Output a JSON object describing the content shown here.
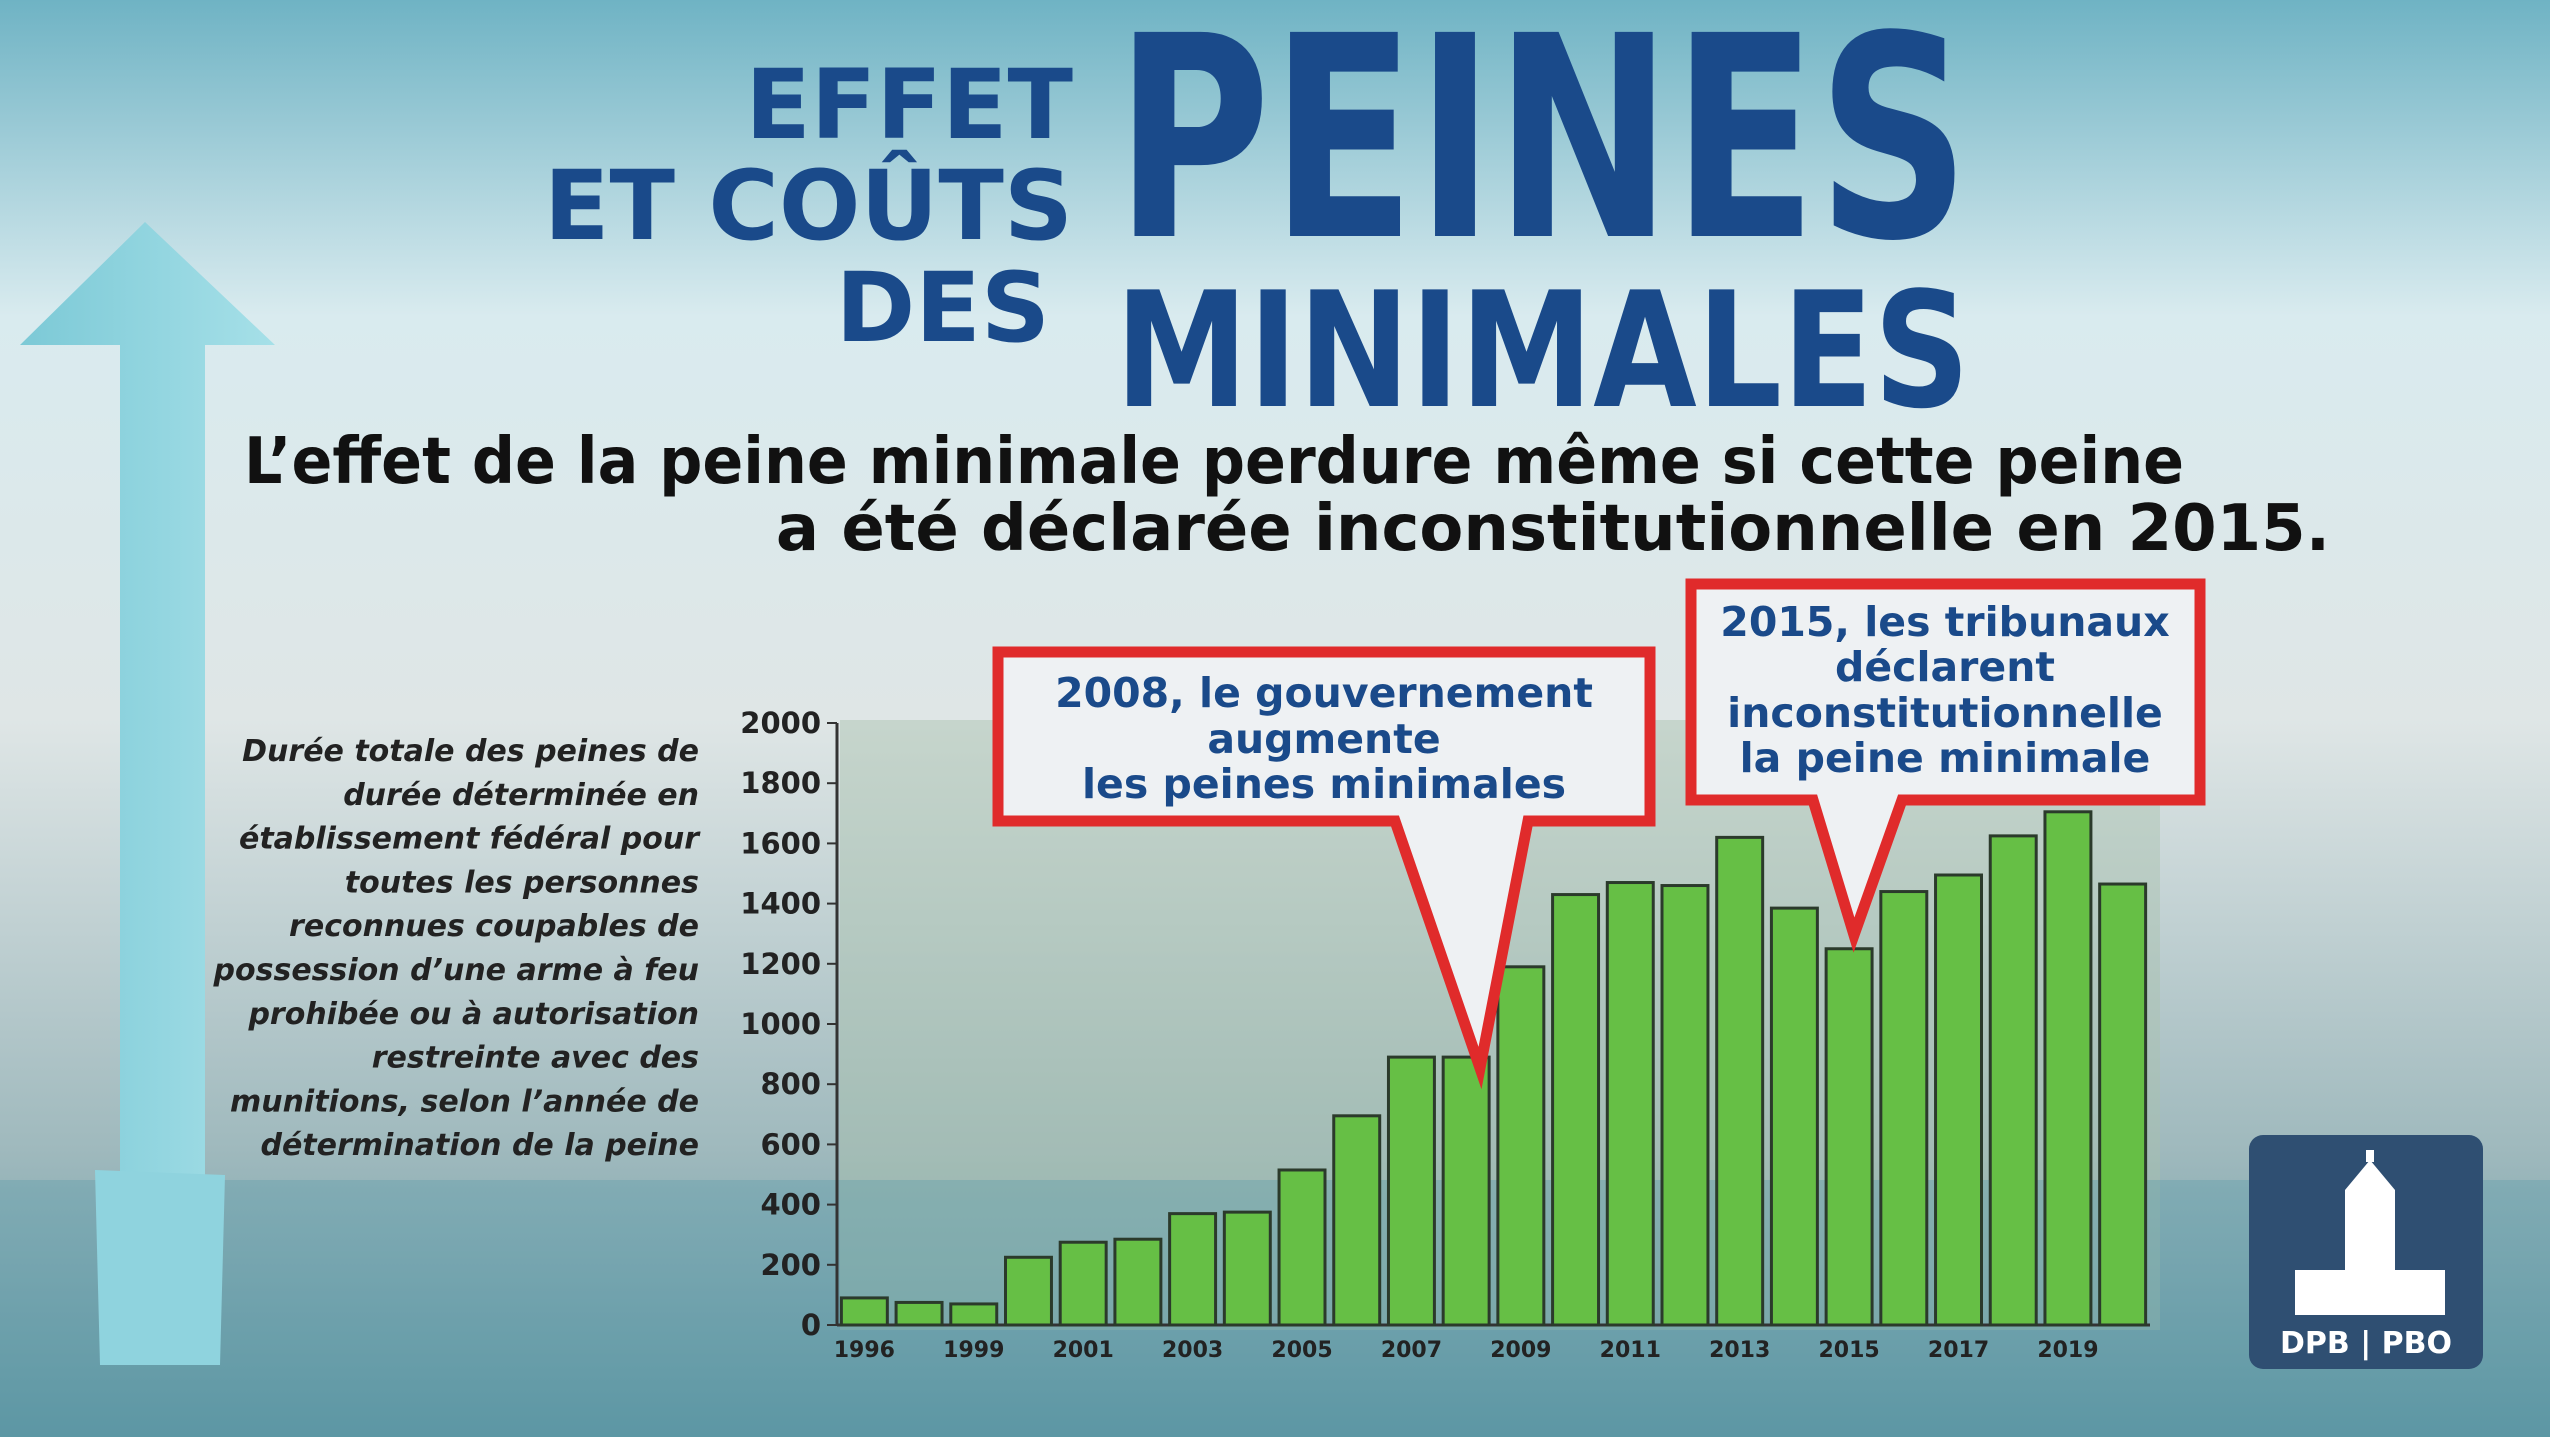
{
  "header": {
    "title_small": [
      "EFFET",
      "ET COÛTS",
      "DES"
    ],
    "title_large": [
      "PEINES",
      "MINIMALES"
    ],
    "subtitle": [
      "L’effet de la peine minimale perdure même si cette peine",
      "a été déclarée inconstitutionnelle en 2015."
    ]
  },
  "chart_data": {
    "type": "bar",
    "description": [
      "Durée totale des peines de",
      "durée déterminée en",
      "établissement fédéral pour",
      "toutes les personnes",
      "reconnues coupables de",
      "possession d’une arme à feu",
      "prohibée ou à autorisation",
      "restreinte avec des",
      "munitions, selon l’année de",
      "détermination de la peine"
    ],
    "categories": [
      "1996",
      null,
      "1999",
      null,
      "2001",
      null,
      "2003",
      null,
      "2005",
      null,
      "2007",
      null,
      "2009",
      null,
      "2011",
      null,
      "2013",
      null,
      "2015",
      null,
      "2017",
      null,
      "2019",
      null
    ],
    "values": [
      90,
      75,
      70,
      225,
      275,
      285,
      370,
      375,
      515,
      695,
      890,
      890,
      1190,
      1430,
      1470,
      1460,
      1620,
      1385,
      1250,
      1440,
      1495,
      1625,
      1705,
      1465
    ],
    "color": "#66bf45",
    "ylim": [
      0,
      2000
    ],
    "yticks": [
      0,
      200,
      400,
      600,
      800,
      1000,
      1200,
      1400,
      1600,
      1800,
      2000
    ],
    "annotations": [
      {
        "lines": [
          "2008, le gouvernement",
          "augmente",
          "les peines minimales"
        ]
      },
      {
        "lines": [
          "2015, les tribunaux",
          "déclarent",
          "inconstitutionnelle",
          "la peine minimale"
        ]
      }
    ]
  },
  "logo": "DPB | PBO"
}
